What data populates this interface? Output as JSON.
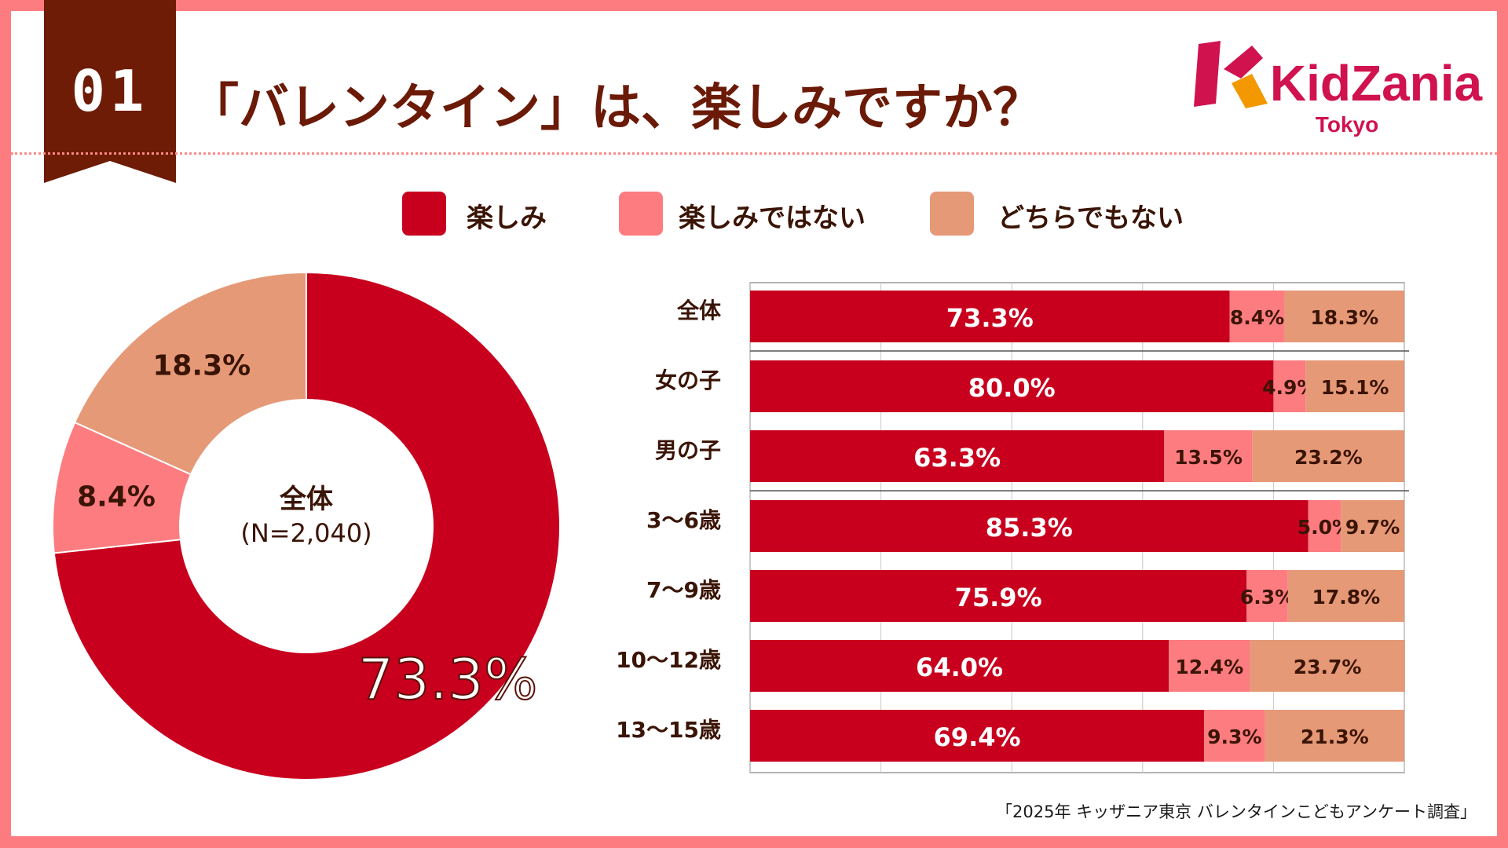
{
  "header": {
    "number": "01",
    "title": "「バレンタイン」は、楽しみですか？"
  },
  "logo": {
    "brand": "KidZania",
    "sub": "Tokyo"
  },
  "legend": [
    {
      "label": "楽しみ",
      "color": "#c8001e"
    },
    {
      "label": "楽しみではない",
      "color": "#fc7c80"
    },
    {
      "label": "どちらでもない",
      "color": "#e59977"
    }
  ],
  "chart_data": [
    {
      "type": "pie",
      "variant": "donut",
      "center_title": "全体",
      "center_sub": "(N=2,040)",
      "slices": [
        {
          "label": "楽しみ",
          "value": 73.3,
          "display": "73.3%",
          "color": "#c8001e"
        },
        {
          "label": "楽しみではない",
          "value": 8.4,
          "display": "8.4%",
          "color": "#fc7c80"
        },
        {
          "label": "どちらでもない",
          "value": 18.3,
          "display": "18.3%",
          "color": "#e59977"
        }
      ]
    },
    {
      "type": "bar",
      "orientation": "horizontal",
      "stacked": true,
      "xlim": [
        0,
        100
      ],
      "gridlines": [
        0,
        20,
        40,
        60,
        80,
        100
      ],
      "categories": [
        "全体",
        "女の子",
        "男の子",
        "3〜6歳",
        "7〜9歳",
        "10〜12歳",
        "13〜15歳"
      ],
      "series": [
        {
          "name": "楽しみ",
          "color": "#c8001e",
          "values": [
            73.3,
            80.0,
            63.3,
            85.3,
            75.9,
            64.0,
            69.4
          ],
          "labels": [
            "73.3%",
            "80.0%",
            "63.3%",
            "85.3%",
            "75.9%",
            "64.0%",
            "69.4%"
          ]
        },
        {
          "name": "楽しみではない",
          "color": "#fc7c80",
          "values": [
            8.4,
            4.9,
            13.5,
            5.0,
            6.3,
            12.4,
            9.3
          ],
          "labels": [
            "8.4%",
            "4.9%",
            "13.5%",
            "5.0%",
            "6.3%",
            "12.4%",
            "9.3%"
          ]
        },
        {
          "name": "どちらでもない",
          "color": "#e59977",
          "values": [
            18.3,
            15.1,
            23.2,
            9.7,
            17.8,
            23.7,
            21.3
          ],
          "labels": [
            "18.3%",
            "15.1%",
            "23.2%",
            "9.7%",
            "17.8%",
            "23.7%",
            "21.3%"
          ]
        }
      ],
      "separators_after": [
        "全体",
        "男の子"
      ]
    }
  ],
  "footer": {
    "source": "「2025年 キッザニア東京 バレンタインこどもアンケート調査」"
  }
}
